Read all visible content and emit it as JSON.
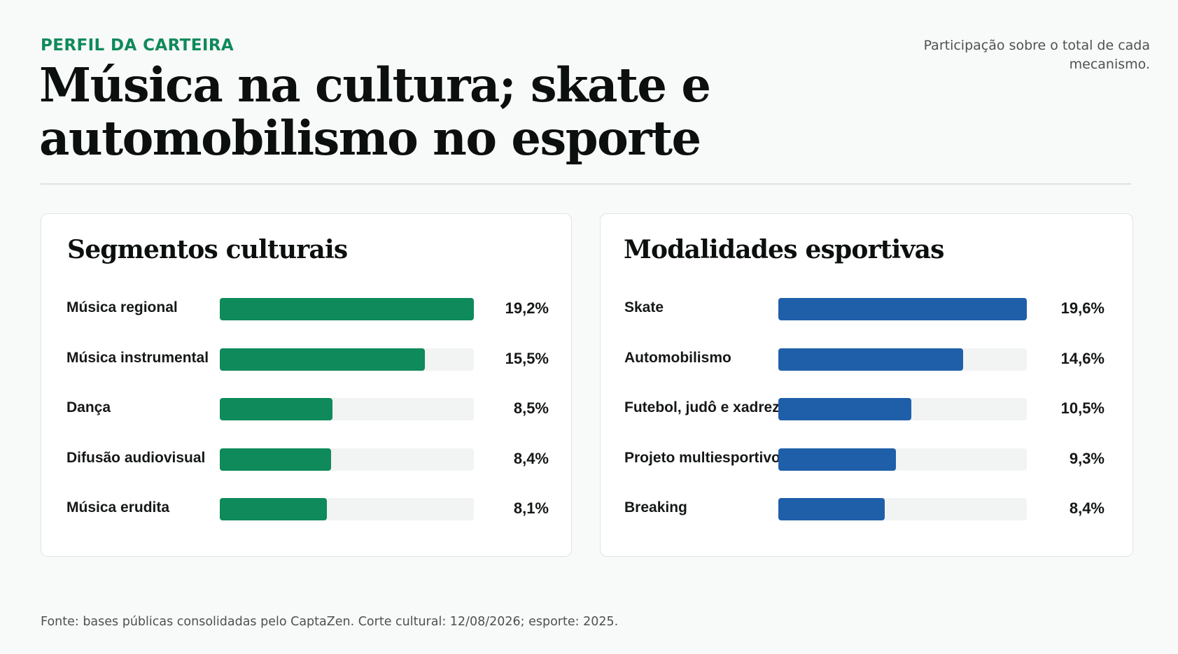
{
  "header": {
    "eyebrow": "PERFIL DA CARTEIRA",
    "title": "Música na cultura; skate e automobilismo no esporte",
    "note": "Participação sobre o total de cada mecanismo."
  },
  "footer": {
    "source": "Fonte: bases públicas consolidadas pelo CaptaZen. Corte cultural: 12/08/2026; esporte: 2025."
  },
  "colors": {
    "accent": "#0f8a5b",
    "culture_bar": "#0f8a5b",
    "sport_bar": "#1f5faa",
    "track": "#f2f3f3"
  },
  "chart_data": [
    {
      "type": "bar",
      "orientation": "horizontal",
      "title": "Segmentos culturais",
      "categories": [
        "Música regional",
        "Música instrumental",
        "Dança",
        "Difusão audiovisual",
        "Música erudita"
      ],
      "values": [
        19.2,
        15.5,
        8.5,
        8.4,
        8.1
      ],
      "value_labels": [
        "19,2%",
        "15,5%",
        "8,5%",
        "8,4%",
        "8,1%"
      ],
      "xlim": [
        0,
        19.2
      ],
      "unit": "%",
      "grid": false,
      "color": "#0f8a5b"
    },
    {
      "type": "bar",
      "orientation": "horizontal",
      "title": "Modalidades esportivas",
      "categories": [
        "Skate",
        "Automobilismo",
        "Futebol, judô e xadrez",
        "Projeto multiesportivo",
        "Breaking"
      ],
      "values": [
        19.6,
        14.6,
        10.5,
        9.3,
        8.4
      ],
      "value_labels": [
        "19,6%",
        "14,6%",
        "10,5%",
        "9,3%",
        "8,4%"
      ],
      "xlim": [
        0,
        19.6
      ],
      "unit": "%",
      "grid": false,
      "color": "#1f5faa"
    }
  ]
}
